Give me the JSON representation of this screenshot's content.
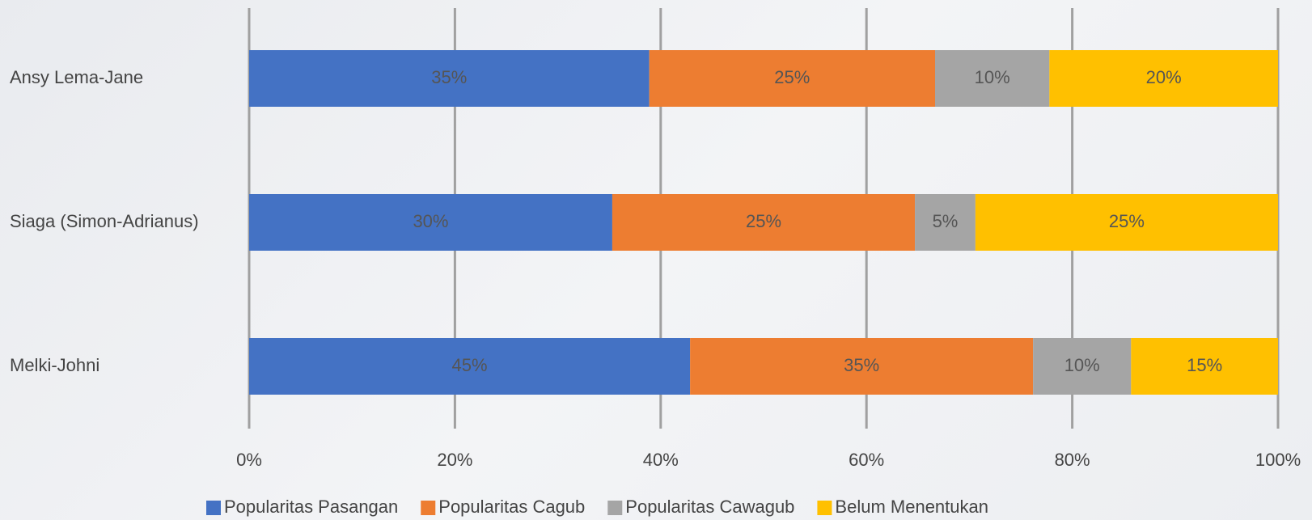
{
  "chart_data": {
    "type": "bar",
    "orientation": "horizontal",
    "stacking": "percent",
    "categories": [
      "Ansy Lema-Jane",
      "Siaga (Simon-Adrianus)",
      "Melki-Johni"
    ],
    "series": [
      {
        "name": "Popularitas Pasangan",
        "color": "#4472c4",
        "values": [
          35,
          30,
          45
        ],
        "value_labels": [
          "35%",
          "30%",
          "45%"
        ]
      },
      {
        "name": "Popularitas Cagub",
        "color": "#ed7d31",
        "values": [
          25,
          25,
          35
        ],
        "value_labels": [
          "25%",
          "25%",
          "35%"
        ]
      },
      {
        "name": "Popularitas Cawagub",
        "color": "#a5a5a5",
        "values": [
          10,
          5,
          10
        ],
        "value_labels": [
          "10%",
          "5%",
          "10%"
        ]
      },
      {
        "name": "Belum Menentukan",
        "color": "#ffc000",
        "values": [
          20,
          25,
          15
        ],
        "value_labels": [
          "20%",
          "25%",
          "15%"
        ]
      }
    ],
    "xlim": [
      0,
      100
    ],
    "xticks": [
      {
        "value": 0,
        "label": "0%"
      },
      {
        "value": 20,
        "label": "20%"
      },
      {
        "value": 40,
        "label": "40%"
      },
      {
        "value": 60,
        "label": "60%"
      },
      {
        "value": 80,
        "label": "80%"
      },
      {
        "value": 100,
        "label": "100%"
      }
    ],
    "grid": true,
    "legend": "bottom"
  }
}
